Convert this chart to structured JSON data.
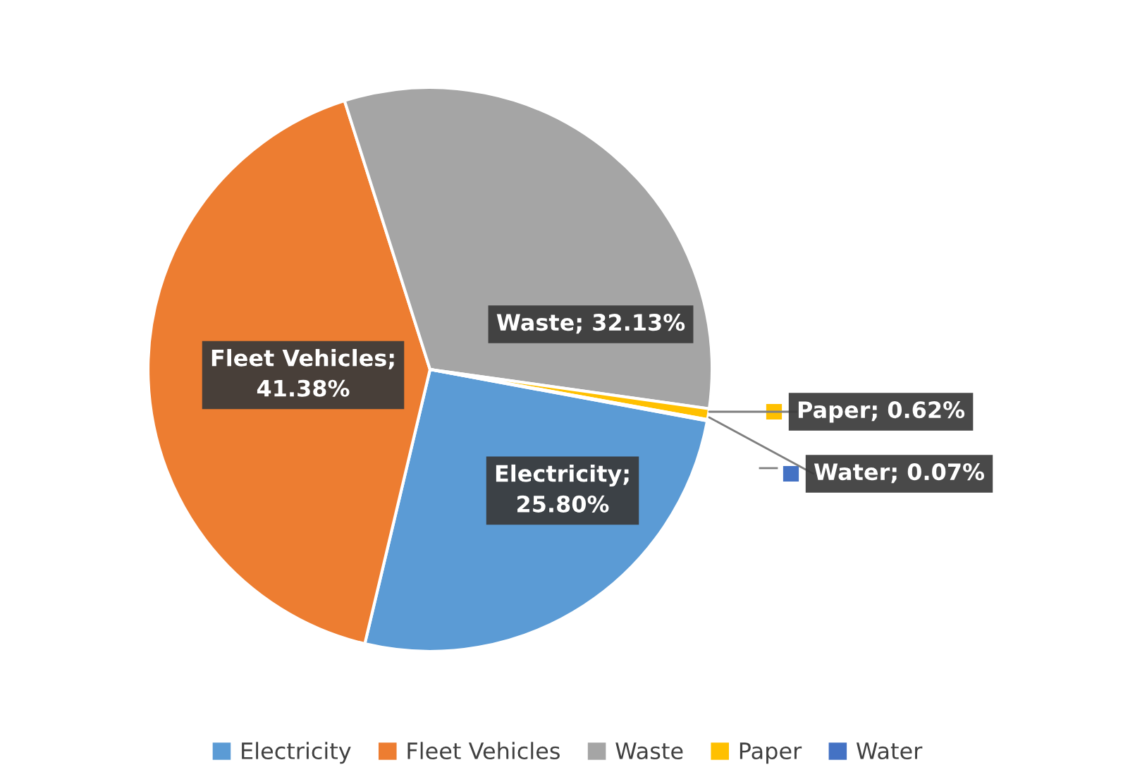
{
  "chart_data": {
    "type": "pie",
    "categories": [
      "Electricity",
      "Fleet Vehicles",
      "Waste",
      "Paper",
      "Water"
    ],
    "values": [
      25.8,
      41.38,
      32.13,
      0.62,
      0.07
    ],
    "colors": [
      "#5b9bd5",
      "#ed7d31",
      "#a5a5a5",
      "#ffc000",
      "#4472c4"
    ],
    "value_labels": [
      "Electricity;\n25.80%",
      "Fleet Vehicles;\n41.38%",
      "Waste; 32.13%",
      "Paper; 0.62%",
      "Water; 0.07%"
    ],
    "legend": "bottom"
  }
}
